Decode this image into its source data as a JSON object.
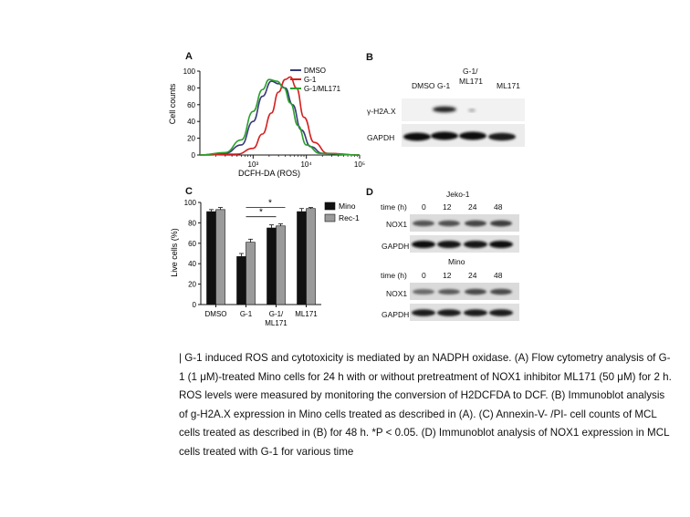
{
  "panels": {
    "a": "A",
    "b": "B",
    "c": "C",
    "d": "D"
  },
  "panel_a": {
    "ylabel": "Cell counts",
    "xlabel": "DCFH-DA (ROS)",
    "yticks": [
      "0",
      "20",
      "40",
      "60",
      "80",
      "100"
    ],
    "xticks": [
      "10³",
      "10⁴",
      "10⁵"
    ],
    "legend": [
      "DMSO",
      "G-1",
      "G-1/ML171"
    ],
    "colors": {
      "DMSO": "#3a3a7a",
      "G-1": "#d42020",
      "G-1/ML171": "#2aa02a"
    }
  },
  "panel_b": {
    "columns": [
      "DMSO",
      "G-1",
      "G-1/\nML171",
      "ML171"
    ],
    "col_line1": [
      "DMSO",
      "G-1",
      "G-1/",
      "ML171"
    ],
    "col_line2": [
      "",
      "",
      "ML171",
      ""
    ],
    "rows": [
      "γ-H2A.X",
      "GAPDH"
    ]
  },
  "panel_d": {
    "jeko_title": "Jeko-1",
    "mino_title": "Mino",
    "time_label": "time (h)",
    "times": [
      "0",
      "12",
      "24",
      "48"
    ],
    "row_nox1": "NOX1",
    "row_gapdh": "GAPDH"
  },
  "chart_data": [
    {
      "type": "line",
      "title": "",
      "xlabel": "DCFH-DA (ROS)",
      "ylabel": "Cell counts",
      "xscale": "log",
      "xlim": [
        100,
        100000
      ],
      "ylim": [
        0,
        100
      ],
      "legend_position": "top-right",
      "series": [
        {
          "name": "DMSO",
          "x": [
            100,
            300,
            600,
            1000,
            1500,
            2200,
            3000,
            4000,
            5500,
            8000,
            12000,
            20000,
            100000
          ],
          "y": [
            0,
            2,
            12,
            40,
            70,
            88,
            85,
            80,
            60,
            30,
            10,
            2,
            0
          ]
        },
        {
          "name": "G-1",
          "x": [
            100,
            500,
            1000,
            1500,
            2200,
            3000,
            4000,
            5000,
            6500,
            9000,
            14000,
            25000,
            100000
          ],
          "y": [
            0,
            1,
            8,
            25,
            50,
            75,
            90,
            93,
            80,
            45,
            15,
            2,
            0
          ]
        },
        {
          "name": "G-1/ML171",
          "x": [
            100,
            300,
            600,
            1000,
            1500,
            2000,
            2800,
            3800,
            5000,
            7000,
            10000,
            18000,
            100000
          ],
          "y": [
            0,
            3,
            18,
            52,
            78,
            90,
            88,
            80,
            62,
            35,
            12,
            2,
            0
          ]
        }
      ]
    },
    {
      "type": "bar",
      "title": "",
      "xlabel": "",
      "ylabel": "Live cells (%)",
      "ylim": [
        0,
        100
      ],
      "yticks": [
        0,
        20,
        40,
        60,
        80,
        100
      ],
      "categories": [
        "DMSO",
        "G-1",
        "G-1/\nML171",
        "ML171"
      ],
      "category_line1": [
        "DMSO",
        "G-1",
        "G-1/",
        "ML171"
      ],
      "category_line2": [
        "",
        "",
        "ML171",
        ""
      ],
      "legend_position": "top-right",
      "series": [
        {
          "name": "Mino",
          "values": [
            91,
            47,
            75,
            91
          ],
          "errors": [
            2,
            3,
            3,
            3
          ],
          "color": "#111111"
        },
        {
          "name": "Rec-1",
          "values": [
            93,
            61,
            77,
            94
          ],
          "errors": [
            2,
            3,
            2,
            1
          ],
          "color": "#9a9a9a"
        }
      ],
      "annotations": [
        "*",
        "*"
      ]
    }
  ],
  "caption": "| G-1 induced ROS and cytotoxicity is mediated by an NADPH oxidase. (A) Flow cytometry analysis of G-1 (1 μM)-treated Mino cells for 24 h with or without pretreatment of NOX1 inhibitor ML171 (50 μM) for 2 h. ROS levels were measured by monitoring the conversion of H2DCFDA to DCF. (B) Immunoblot analysis of g-H2A.X expression in Mino cells treated as described in (A). (C) Annexin-V- /PI- cell counts of MCL cells treated as described in (B) for 48 h. *P < 0.05. (D) Immunoblot analysis of NOX1 expression in MCL cells treated with G-1 for various time"
}
